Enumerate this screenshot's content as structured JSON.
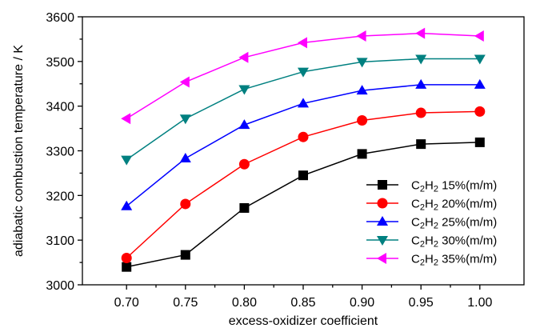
{
  "chart_data": {
    "type": "line",
    "title": "",
    "xlabel": "excess-oxidizer coefficient",
    "ylabel": "adiabatic combustion temperature / K",
    "x": [
      0.7,
      0.75,
      0.8,
      0.85,
      0.9,
      0.95,
      1.0
    ],
    "x_tick_labels": [
      "0.70",
      "0.75",
      "0.80",
      "0.85",
      "0.90",
      "0.95",
      "1.00"
    ],
    "y_ticks": [
      3000,
      3100,
      3200,
      3300,
      3400,
      3500,
      3600
    ],
    "y_tick_labels": [
      "3000",
      "3100",
      "3200",
      "3300",
      "3400",
      "3500",
      "3600"
    ],
    "xlim": [
      0.6625,
      1.0375
    ],
    "ylim": [
      3000,
      3600
    ],
    "grid": false,
    "legend_position": "lower-right",
    "series": [
      {
        "name_main": "C",
        "name_sub1": "2",
        "name_mid": "H",
        "name_sub2": "2",
        "name_rest": " 15%(m/m)",
        "color": "#000000",
        "marker": "square",
        "values": [
          3040,
          3067,
          3172,
          3245,
          3293,
          3315,
          3319
        ]
      },
      {
        "name_main": "C",
        "name_sub1": "2",
        "name_mid": "H",
        "name_sub2": "2",
        "name_rest": " 20%(m/m)",
        "color": "#ff0000",
        "marker": "circle",
        "values": [
          3060,
          3181,
          3270,
          3331,
          3368,
          3385,
          3388
        ]
      },
      {
        "name_main": "C",
        "name_sub1": "2",
        "name_mid": "H",
        "name_sub2": "2",
        "name_rest": " 25%(m/m)",
        "color": "#0000ff",
        "marker": "triangle-up",
        "values": [
          3176,
          3283,
          3358,
          3406,
          3435,
          3448,
          3448
        ]
      },
      {
        "name_main": "C",
        "name_sub1": "2",
        "name_mid": "H",
        "name_sub2": "2",
        "name_rest": " 30%(m/m)",
        "color": "#008080",
        "marker": "triangle-down",
        "values": [
          3280,
          3372,
          3438,
          3477,
          3499,
          3506,
          3506
        ]
      },
      {
        "name_main": "C",
        "name_sub1": "2",
        "name_mid": "H",
        "name_sub2": "2",
        "name_rest": " 35%(m/m)",
        "color": "#ff00ff",
        "marker": "triangle-left",
        "values": [
          3372,
          3454,
          3509,
          3542,
          3557,
          3563,
          3557
        ]
      }
    ]
  }
}
